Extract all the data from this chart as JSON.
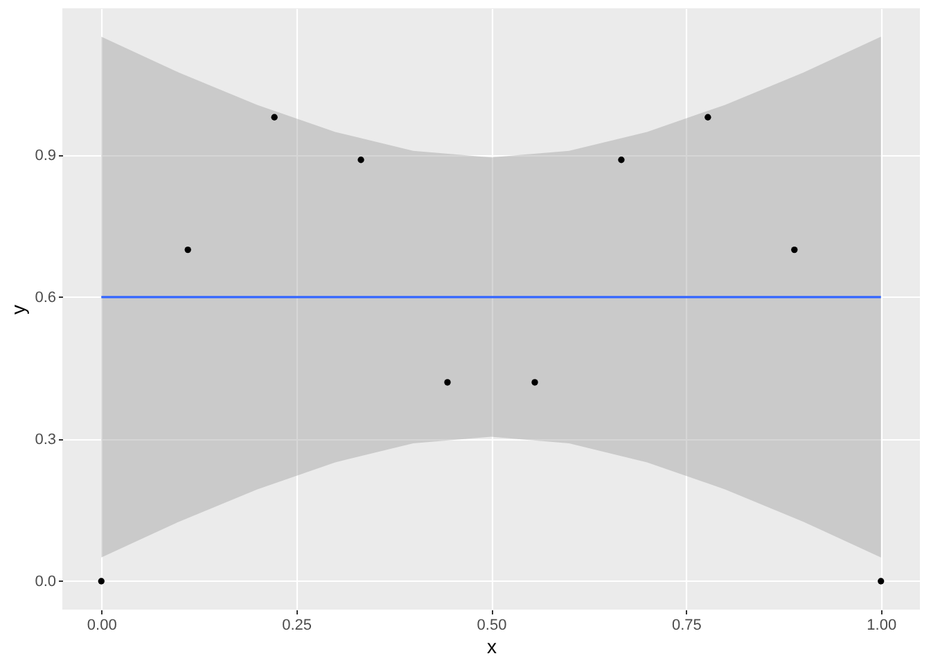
{
  "chart_data": {
    "type": "scatter",
    "xlabel": "x",
    "ylabel": "y",
    "xlim": [
      -0.05,
      1.05
    ],
    "ylim": [
      -0.06,
      1.21
    ],
    "xticks": [
      {
        "value": 0,
        "label": "0.00"
      },
      {
        "value": 0.25,
        "label": "0.25"
      },
      {
        "value": 0.5,
        "label": "0.50"
      },
      {
        "value": 0.75,
        "label": "0.75"
      },
      {
        "value": 1,
        "label": "1.00"
      }
    ],
    "yticks": [
      {
        "value": 0,
        "label": "0.0"
      },
      {
        "value": 0.3,
        "label": "0.3"
      },
      {
        "value": 0.6,
        "label": "0.6"
      },
      {
        "value": 0.9,
        "label": "0.9"
      }
    ],
    "grid": true,
    "marker": "circle",
    "series": [
      {
        "type": "line",
        "marker": "none",
        "color": "#3366ff",
        "x": [
          0,
          0.1,
          0.2,
          0.3,
          0.4,
          0.5,
          0.6,
          0.7,
          0.8,
          0.9,
          1
        ],
        "values": [
          0.6,
          0.6,
          0.6,
          0.6,
          0.6,
          0.6,
          0.6,
          0.6,
          0.6,
          0.6,
          0.6
        ],
        "lower": [
          0.05,
          0.126,
          0.194,
          0.251,
          0.291,
          0.305,
          0.291,
          0.251,
          0.194,
          0.126,
          0.05
        ],
        "upper": [
          1.15,
          1.074,
          1.006,
          0.949,
          0.909,
          0.895,
          0.909,
          0.949,
          1.006,
          1.074,
          1.15
        ]
      },
      {
        "color": "#000000",
        "x": [
          0,
          0.111,
          0.222,
          0.333,
          0.444,
          0.556,
          0.667,
          0.778,
          0.889,
          1
        ],
        "values": [
          0,
          0.7,
          0.98,
          0.89,
          0.42,
          0.42,
          0.89,
          0.98,
          0.7,
          0
        ]
      }
    ]
  }
}
